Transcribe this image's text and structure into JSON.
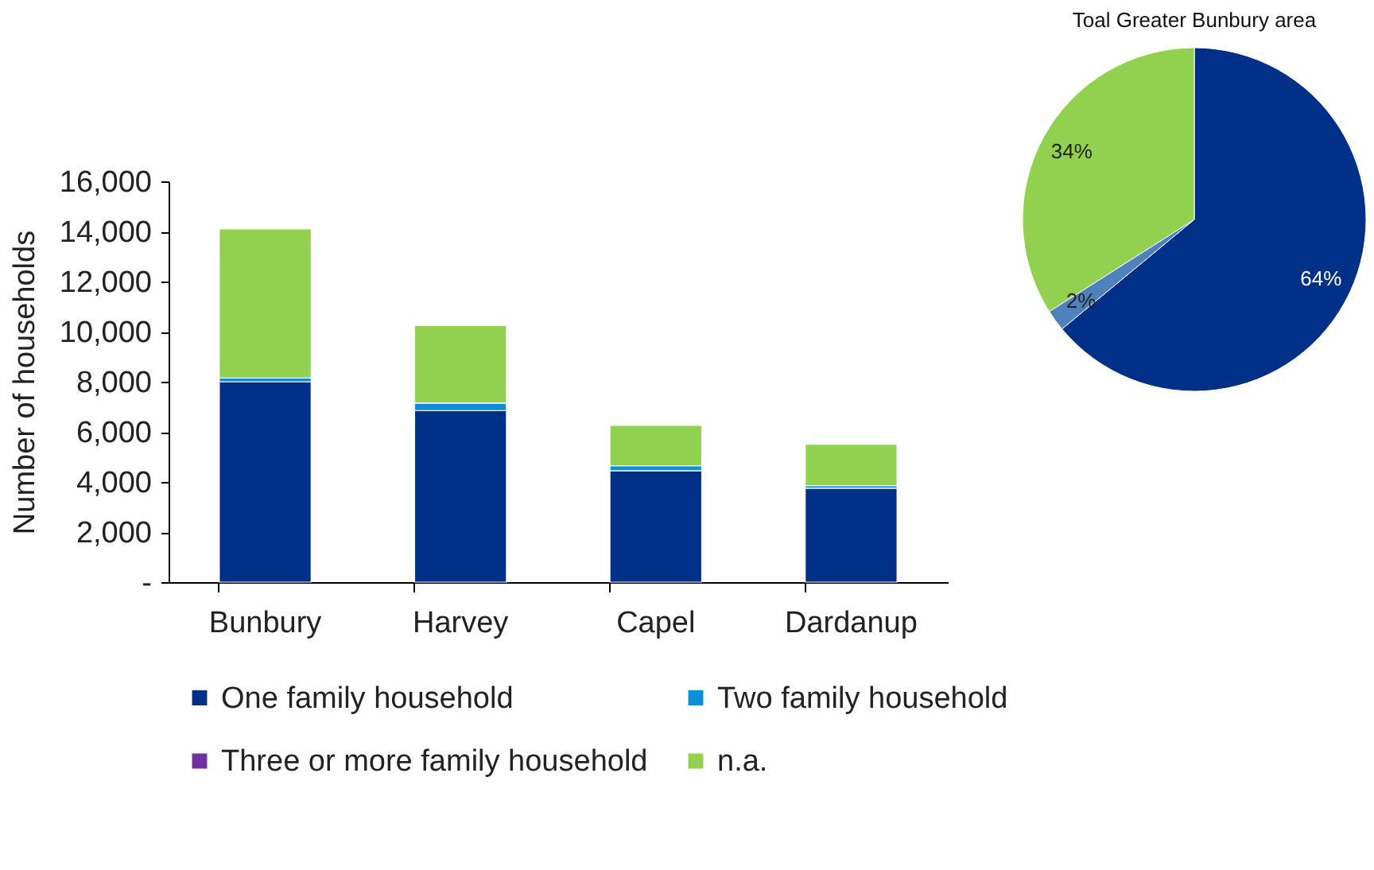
{
  "chart_data": [
    {
      "type": "bar",
      "stacked": true,
      "ylabel": "Number of households",
      "categories": [
        "Bunbury",
        "Harvey",
        "Capel",
        "Dardanup"
      ],
      "series": [
        {
          "name": "One family household",
          "color": "#003087",
          "values": [
            8000,
            6850,
            4450,
            3750
          ]
        },
        {
          "name": "Two family household",
          "color": "#0b8fd6",
          "values": [
            150,
            300,
            200,
            100
          ]
        },
        {
          "name": "Three or more family household",
          "color": "#7030a0",
          "values": [
            null,
            null,
            null,
            null
          ]
        },
        {
          "name": "n.a.",
          "color": "#92d050",
          "values": [
            5950,
            3090,
            1610,
            1650
          ]
        }
      ],
      "ylim": [
        0,
        16000
      ],
      "yticks": [
        {
          "value": 0,
          "label": "-"
        },
        {
          "value": 2000,
          "label": "2,000"
        },
        {
          "value": 4000,
          "label": "4,000"
        },
        {
          "value": 6000,
          "label": "6,000"
        },
        {
          "value": 8000,
          "label": "8,000"
        },
        {
          "value": 10000,
          "label": "10,000"
        },
        {
          "value": 12000,
          "label": "12,000"
        },
        {
          "value": 14000,
          "label": "14,000"
        },
        {
          "value": 16000,
          "label": "16,000"
        }
      ],
      "grid": false,
      "legend": "bottom"
    },
    {
      "type": "pie",
      "title": "Toal Greater Bunbury area",
      "categories": [
        null,
        null,
        null
      ],
      "values": [
        64,
        2,
        34
      ],
      "colors": [
        "#003087",
        "#4f81bd",
        "#92d050"
      ],
      "value_labels": [
        "64%",
        "2%",
        "34%"
      ],
      "legend": false
    }
  ]
}
